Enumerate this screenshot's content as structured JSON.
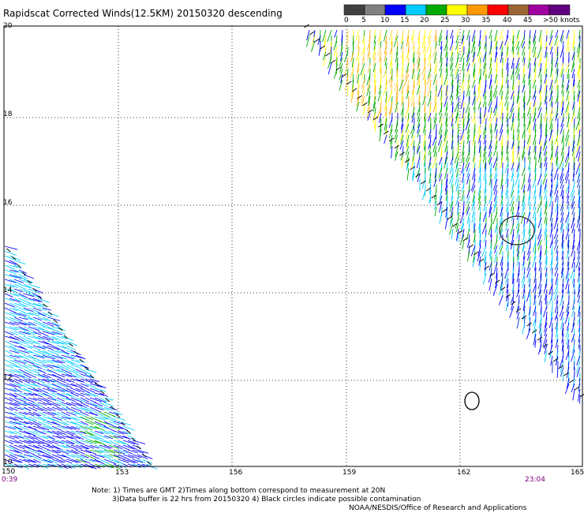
{
  "title": "Rapidscat Corrected Winds(12.5KM) 20150320 descending",
  "legend": {
    "labels": [
      "0",
      "5",
      "10",
      "15",
      "20",
      "25",
      "30",
      "35",
      "40",
      "45",
      ">50 knots"
    ],
    "colors": [
      "#404040",
      "#808080",
      "#0000ff",
      "#00ccff",
      "#00aa00",
      "#ffff00",
      "#ff9900",
      "#ff0000",
      "#996633",
      "#a000a0",
      "#600080"
    ]
  },
  "axes": {
    "lat_labels": [
      "20",
      "18",
      "16",
      "14",
      "12",
      "10"
    ],
    "lon_labels": [
      "153",
      "156",
      "159",
      "162",
      "165"
    ],
    "lon_start": "150"
  },
  "times": {
    "left": "0:39",
    "right": "23:04"
  },
  "notes": {
    "line1": "Note: 1) Times are GMT 2)Times along bottom correspond to measurement at 20N",
    "line2": "3)Data buffer is 22 hrs from 20150320 4) Black circles indicate possible contamination",
    "line3": "NOAA/NESDIS/Office of Research and Applications"
  }
}
